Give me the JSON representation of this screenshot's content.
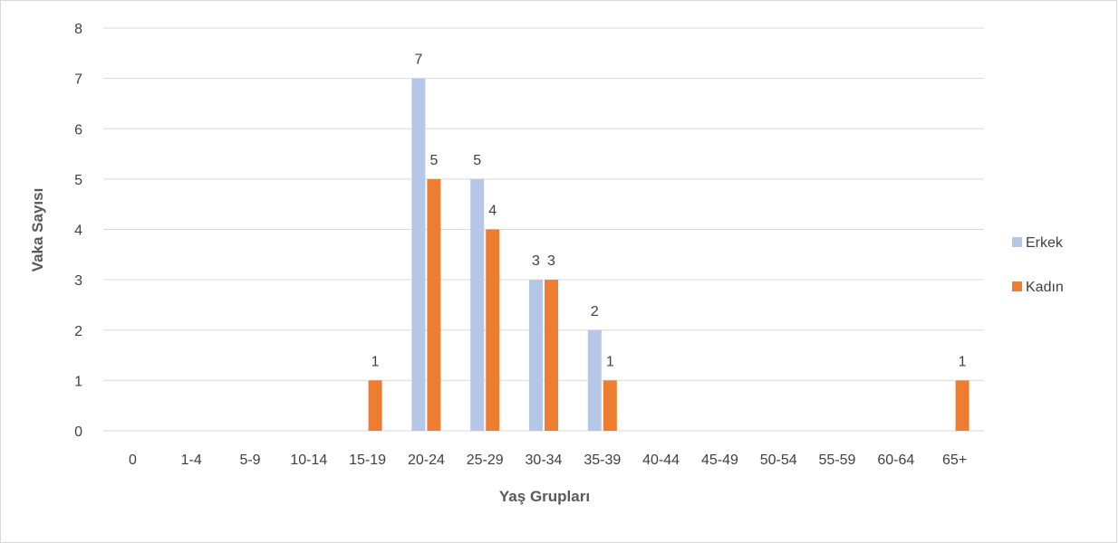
{
  "chart_data": {
    "type": "bar",
    "title": "",
    "xlabel": "Yaş Grupları",
    "ylabel": "Vaka Sayısı",
    "ylim": [
      0,
      8
    ],
    "yticks": [
      0,
      1,
      2,
      3,
      4,
      5,
      6,
      7,
      8
    ],
    "grid": true,
    "legend_position": "right",
    "categories": [
      "0",
      "1-4",
      "5-9",
      "10-14",
      "15-19",
      "20-24",
      "25-29",
      "30-34",
      "35-39",
      "40-44",
      "45-49",
      "50-54",
      "55-59",
      "60-64",
      "65+"
    ],
    "series": [
      {
        "name": "Erkek",
        "color": "#b4c7e7",
        "values": [
          0,
          0,
          0,
          0,
          0,
          7,
          5,
          3,
          2,
          0,
          0,
          0,
          0,
          0,
          0
        ]
      },
      {
        "name": "Kadın",
        "color": "#ed7d31",
        "values": [
          0,
          0,
          0,
          0,
          1,
          5,
          4,
          3,
          1,
          0,
          0,
          0,
          0,
          0,
          1
        ]
      }
    ]
  }
}
